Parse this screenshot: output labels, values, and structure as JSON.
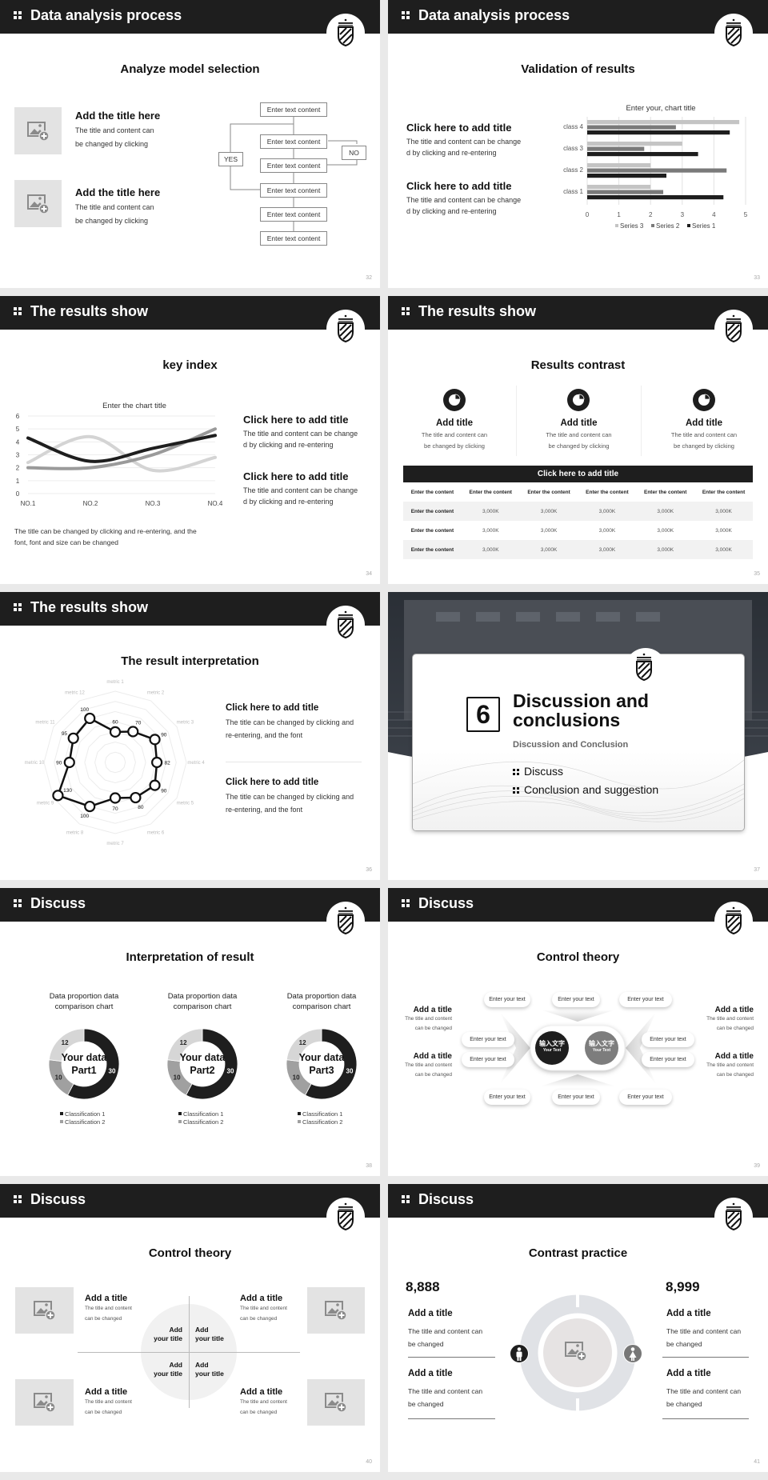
{
  "colors": {
    "header": "#1e1e1e",
    "accent_dark": "#1e1e1e",
    "mid_gray": "#808080",
    "light_gray": "#c8c8c8",
    "placeholder": "#e3e3e3"
  },
  "icons": {
    "header_bullet": "four-dots-icon",
    "logo": "striped-shield-icon",
    "image": "image-add-icon"
  },
  "slides": [
    {
      "header": "Data analysis process",
      "title": "Analyze model selection",
      "page": "32",
      "items": [
        {
          "title": "Add the title here",
          "text1": "The title and content can",
          "text2": "be changed by clicking"
        },
        {
          "title": "Add the title here",
          "text1": "The title and content can",
          "text2": "be changed by clicking"
        }
      ],
      "flow": {
        "steps": [
          "Enter text content",
          "Enter text content",
          "Enter text content",
          "Enter text content",
          "Enter text content",
          "Enter text content"
        ],
        "yes": "YES",
        "no": "NO"
      }
    },
    {
      "header": "Data analysis process",
      "title": "Validation of results",
      "page": "33",
      "items": [
        {
          "title": "Click here to add title",
          "text1": "The title and content can be change",
          "text2": "d by clicking and re-entering"
        },
        {
          "title": "Click here to add title",
          "text1": "The title and content can be change",
          "text2": "d by clicking and re-entering"
        }
      ]
    },
    {
      "header": "The results show",
      "title": "key index",
      "page": "34",
      "caption1": "The title can be changed by clicking and re-entering, and the",
      "caption2": "font, font and size can be changed",
      "items": [
        {
          "title": "Click here to add title",
          "text1": "The title and content can be change",
          "text2": "d by clicking and re-entering"
        },
        {
          "title": "Click here to add title",
          "text1": "The title and content can be change",
          "text2": "d by clicking and re-entering"
        }
      ]
    },
    {
      "header": "The results show",
      "title": "Results contrast",
      "page": "35",
      "cols": [
        {
          "title": "Add title",
          "text1": "The title and content can",
          "text2": "be changed by clicking"
        },
        {
          "title": "Add title",
          "text1": "The title and content can",
          "text2": "be changed by clicking"
        },
        {
          "title": "Add title",
          "text1": "The title and content can",
          "text2": "be changed by clicking"
        }
      ],
      "table": {
        "title": "Click here to add title",
        "header": [
          "Enter the content",
          "Enter the content",
          "Enter the content",
          "Enter the content",
          "Enter the content",
          "Enter the content"
        ],
        "rows": [
          [
            "Enter the content",
            "3,000K",
            "3,000K",
            "3,000K",
            "3,000K",
            "3,000K"
          ],
          [
            "Enter the content",
            "3,000K",
            "3,000K",
            "3,000K",
            "3,000K",
            "3,000K"
          ],
          [
            "Enter the content",
            "3,000K",
            "3,000K",
            "3,000K",
            "3,000K",
            "3,000K"
          ]
        ]
      }
    },
    {
      "header": "The results show",
      "title": "The result interpretation",
      "page": "36",
      "items": [
        {
          "title": "Click here to add  title",
          "text1": "The title can be changed by clicking and",
          "text2": "re-entering, and the font"
        },
        {
          "title": "Click here to add  title",
          "text1": "The title can be changed by clicking and",
          "text2": "re-entering, and the font"
        }
      ]
    },
    {
      "page": "37",
      "section": {
        "number": "6",
        "heading1": "Discussion and",
        "heading2": "conclusions",
        "subtitle": "Discussion and Conclusion",
        "bullets": [
          "Discuss",
          "Conclusion and suggestion"
        ]
      }
    },
    {
      "header": "Discuss",
      "title": "Interpretation of result",
      "page": "38"
    },
    {
      "header": "Discuss",
      "title": "Control theory",
      "page": "39",
      "side": [
        {
          "title": "Add a title",
          "text1": "The title and content",
          "text2": "can be changed"
        },
        {
          "title": "Add a title",
          "text1": "The title and content",
          "text2": "can be changed"
        },
        {
          "title": "Add a title",
          "text1": "The title and content",
          "text2": "can be changed"
        },
        {
          "title": "Add a title",
          "text1": "The title and content",
          "text2": "can be changed"
        }
      ],
      "pill": "Enter your text",
      "center": [
        {
          "cn": "输入文字",
          "en": "Your Text"
        },
        {
          "cn": "输入文字",
          "en": "Your Text"
        }
      ]
    },
    {
      "header": "Discuss",
      "title": "Control theory",
      "page": "40",
      "items": [
        {
          "title": "Add a title",
          "text1": "The title and content",
          "text2": "can be changed"
        },
        {
          "title": "Add a title",
          "text1": "The title and content",
          "text2": "can be changed"
        },
        {
          "title": "Add a title",
          "text1": "The title and content",
          "text2": "can be changed"
        },
        {
          "title": "Add a title",
          "text1": "The title and content",
          "text2": "can be changed"
        }
      ],
      "quad": {
        "line1": "Add",
        "line2": "your title"
      }
    },
    {
      "header": "Discuss",
      "title": "Contrast practice",
      "page": "41",
      "left": {
        "number": "8,888",
        "items": [
          {
            "title": "Add a title",
            "text1": "The title and content can",
            "text2": "be changed"
          },
          {
            "title": "Add a title",
            "text1": "The title and content can",
            "text2": "be changed"
          }
        ]
      },
      "right": {
        "number": "8,999",
        "items": [
          {
            "title": "Add a title",
            "text1": "The title and content can",
            "text2": "be changed"
          },
          {
            "title": "Add a title",
            "text1": "The title and content can",
            "text2": "be changed"
          }
        ]
      },
      "icons": [
        "male-icon",
        "female-icon"
      ]
    }
  ],
  "chart_data": [
    {
      "type": "bar",
      "orientation": "horizontal",
      "title": "Enter your, chart title",
      "categories": [
        "class 1",
        "class 2",
        "class 3",
        "class 4"
      ],
      "series": [
        {
          "name": "Series 1",
          "values": [
            4.3,
            2.5,
            3.5,
            4.5
          ],
          "color": "#1e1e1e"
        },
        {
          "name": "Series 2",
          "values": [
            2.4,
            4.4,
            1.8,
            2.8
          ],
          "color": "#7a7a7a"
        },
        {
          "name": "Series 3",
          "values": [
            2,
            2,
            3,
            4.8
          ],
          "color": "#c4c4c4"
        }
      ],
      "xlim": [
        0,
        5
      ],
      "xticks": [
        "0",
        "1",
        "2",
        "3",
        "4",
        "5"
      ],
      "grid": true,
      "legend": "bottom"
    },
    {
      "type": "line",
      "title": "Enter the chart title",
      "categories": [
        "NO.1",
        "NO.2",
        "NO.3",
        "NO.4"
      ],
      "series": [
        {
          "values": [
            4.3,
            2.5,
            3.5,
            4.5
          ],
          "color": "#1e1e1e"
        },
        {
          "values": [
            2.4,
            4.4,
            1.8,
            2.8
          ],
          "color": "#d4d4d4"
        },
        {
          "values": [
            2,
            2,
            3,
            5
          ],
          "color": "#9a9a9a"
        }
      ],
      "ylim": [
        0,
        6
      ],
      "yticks": [
        "0",
        "1",
        "2",
        "3",
        "4",
        "5",
        "6"
      ],
      "smooth": true,
      "legend": "none"
    },
    {
      "type": "radar",
      "categories": [
        "metric 1",
        "metric 2",
        "metric 3",
        "metric 4",
        "metric 5",
        "metric 6",
        "metric 7",
        "metric 8",
        "metric 9",
        "metric 10",
        "metric 11",
        "metric 12"
      ],
      "values": [
        60,
        70,
        90,
        82,
        90,
        80,
        70,
        100,
        130,
        90,
        95,
        100
      ],
      "labels": [
        "60",
        "70",
        "90",
        "82",
        "90",
        "80",
        "70",
        "100",
        "130",
        "90",
        "95",
        "100"
      ],
      "rlim": [
        0,
        140
      ]
    },
    {
      "type": "pie",
      "donut": true,
      "title": "Data proportion data comparison chart",
      "title1": "Data proportion data",
      "title2": "comparison chart",
      "center1": "Your data",
      "center2": "Part1",
      "values": [
        30,
        10,
        12
      ],
      "labels": [
        "30",
        "10",
        "12"
      ],
      "colors": [
        "#1e1e1e",
        "#a0a0a0",
        "#d6d6d6"
      ],
      "legend": [
        "Classification 1",
        "Classification 2"
      ]
    },
    {
      "type": "pie",
      "donut": true,
      "title": "Data proportion data comparison chart",
      "title1": "Data proportion data",
      "title2": "comparison chart",
      "center1": "Your data",
      "center2": "Part2",
      "values": [
        30,
        10,
        12
      ],
      "labels": [
        "30",
        "10",
        "12"
      ],
      "colors": [
        "#1e1e1e",
        "#a0a0a0",
        "#d6d6d6"
      ],
      "legend": [
        "Classification 1",
        "Classification 2"
      ]
    },
    {
      "type": "pie",
      "donut": true,
      "title": "Data proportion data comparison chart",
      "title1": "Data proportion data",
      "title2": "comparison chart",
      "center1": "Your data",
      "center2": "Part3",
      "values": [
        30,
        10,
        12
      ],
      "labels": [
        "30",
        "10",
        "12"
      ],
      "colors": [
        "#1e1e1e",
        "#a0a0a0",
        "#d6d6d6"
      ],
      "legend": [
        "Classification 1",
        "Classification 2"
      ]
    }
  ]
}
